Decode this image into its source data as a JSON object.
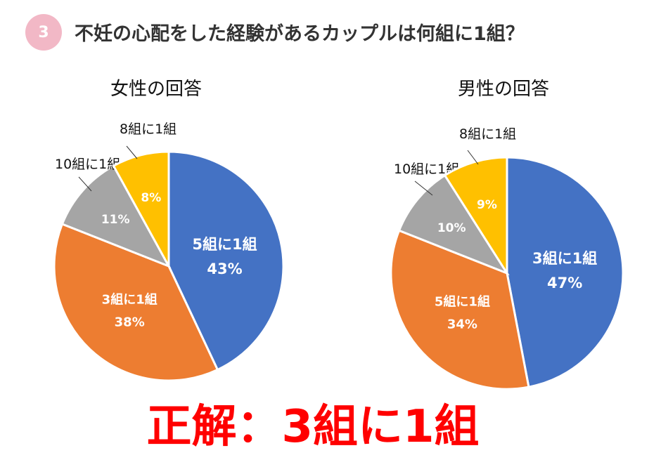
{
  "header": {
    "badge": "3",
    "title": "不妊の心配をした経験があるカップルは何組に1組？"
  },
  "answer": "正解：3組に1組",
  "colors": {
    "badge": "#F2B8C6",
    "answer": "#FF0000"
  },
  "chart_data": [
    {
      "type": "pie",
      "title": "女性の回答",
      "slices": [
        {
          "label": "5組に1組",
          "value": 43,
          "text": "43%",
          "color": "#4472C4"
        },
        {
          "label": "3組に1組",
          "value": 38,
          "text": "38%",
          "color": "#ED7D31"
        },
        {
          "label": "10組に1組",
          "value": 11,
          "text": "11%",
          "color": "#A5A5A5"
        },
        {
          "label": "8組に1組",
          "value": 8,
          "text": "8%",
          "color": "#FFC000"
        }
      ]
    },
    {
      "type": "pie",
      "title": "男性の回答",
      "slices": [
        {
          "label": "3組に1組",
          "value": 47,
          "text": "47%",
          "color": "#4472C4"
        },
        {
          "label": "5組に1組",
          "value": 34,
          "text": "34%",
          "color": "#ED7D31"
        },
        {
          "label": "10組に1組",
          "value": 10,
          "text": "10%",
          "color": "#A5A5A5"
        },
        {
          "label": "8組に1組",
          "value": 9,
          "text": "9%",
          "color": "#FFC000"
        }
      ]
    }
  ]
}
